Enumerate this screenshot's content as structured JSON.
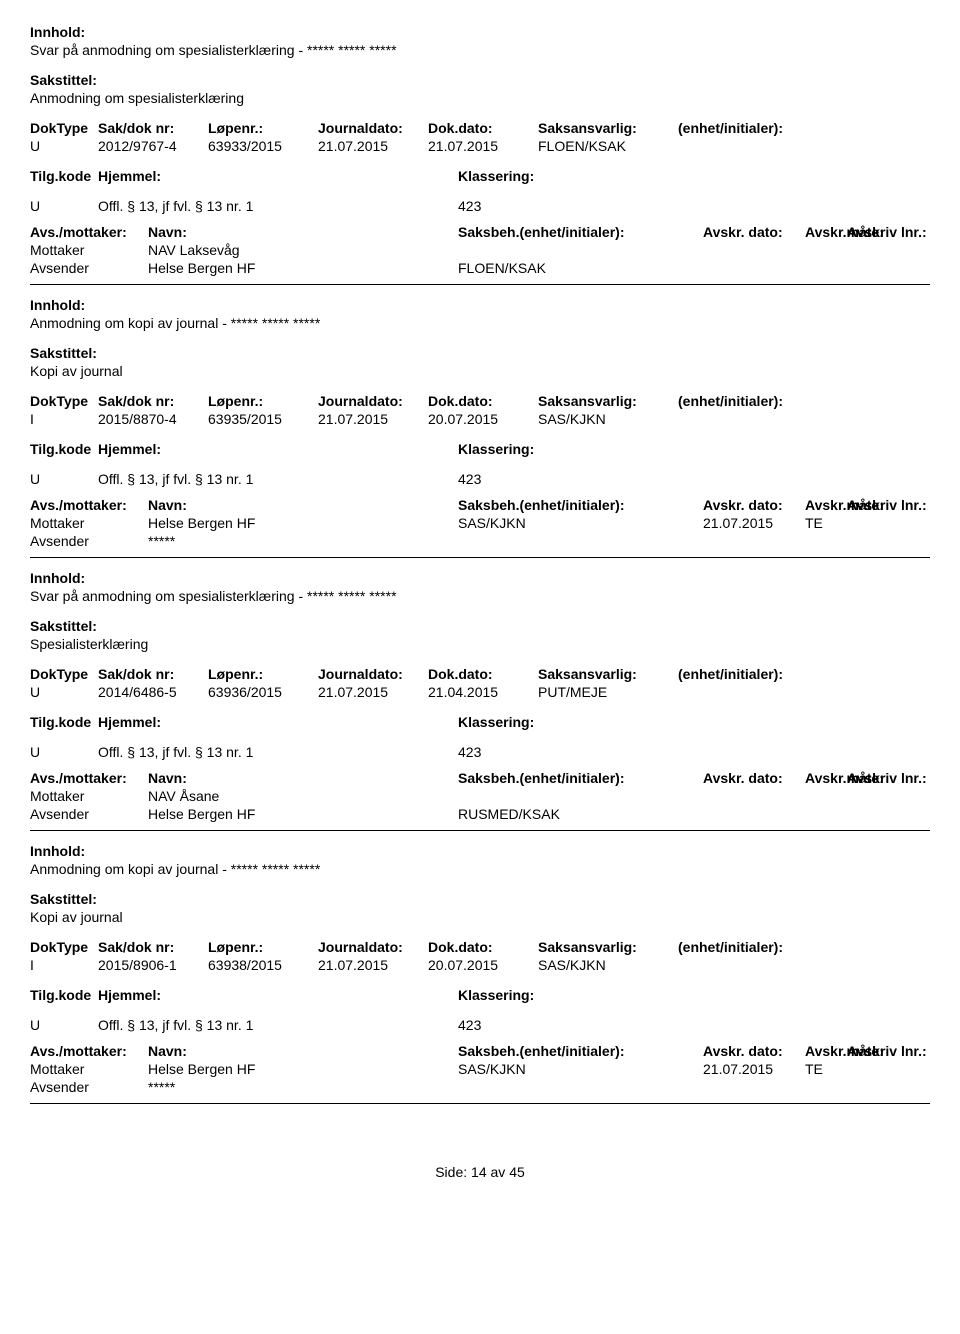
{
  "labels": {
    "innhold": "Innhold:",
    "sakstittel": "Sakstittel:",
    "doktype": "DokType",
    "sakdok": "Sak/dok nr:",
    "lopen": "Løpenr.:",
    "journal": "Journaldato:",
    "dokdato": "Dok.dato:",
    "saksans": "Saksansvarlig:",
    "enhet": "(enhet/initialer):",
    "tilgkode": "Tilg.kode",
    "hjemmel": "Hjemmel:",
    "klassering": "Klassering:",
    "avsmottaker": "Avs./mottaker:",
    "navn": "Navn:",
    "saksbeh": "Saksbeh.(enhet/initialer):",
    "avskrdato": "Avskr. dato:",
    "avskrmate": "Avskr.måte:",
    "avskrlnr": "Avskriv lnr.:",
    "mottaker": "Mottaker",
    "avsender": "Avsender"
  },
  "records": [
    {
      "innhold": "Svar på anmodning om spesialisterklæring - ***** ***** *****",
      "sakstittel": "Anmodning om spesialisterklæring",
      "doktype": "U",
      "sakdok": "2012/9767-4",
      "lopen": "63933/2015",
      "journal": "21.07.2015",
      "dokdato": "21.07.2015",
      "saksans": "FLOEN/KSAK",
      "tilgkode": "U",
      "hjemmel": "Offl. § 13, jf fvl. § 13 nr. 1",
      "klassering": "423",
      "parties": [
        {
          "role": "Mottaker",
          "navn": "NAV Laksevåg",
          "saksbeh": "",
          "avskrdato": "",
          "avskrmate": ""
        },
        {
          "role": "Avsender",
          "navn": "Helse Bergen HF",
          "saksbeh": "FLOEN/KSAK",
          "avskrdato": "",
          "avskrmate": ""
        }
      ]
    },
    {
      "innhold": "Anmodning om kopi av journal - ***** ***** *****",
      "sakstittel": "Kopi av journal",
      "doktype": "I",
      "sakdok": "2015/8870-4",
      "lopen": "63935/2015",
      "journal": "21.07.2015",
      "dokdato": "20.07.2015",
      "saksans": "SAS/KJKN",
      "tilgkode": "U",
      "hjemmel": "Offl. § 13, jf fvl. § 13 nr. 1",
      "klassering": "423",
      "parties": [
        {
          "role": "Mottaker",
          "navn": "Helse Bergen HF",
          "saksbeh": "SAS/KJKN",
          "avskrdato": "21.07.2015",
          "avskrmate": "TE"
        },
        {
          "role": "Avsender",
          "navn": "*****",
          "saksbeh": "",
          "avskrdato": "",
          "avskrmate": ""
        }
      ]
    },
    {
      "innhold": "Svar på anmodning om spesialisterklæring - ***** ***** *****",
      "sakstittel": "Spesialisterklæring",
      "doktype": "U",
      "sakdok": "2014/6486-5",
      "lopen": "63936/2015",
      "journal": "21.07.2015",
      "dokdato": "21.04.2015",
      "saksans": "PUT/MEJE",
      "tilgkode": "U",
      "hjemmel": "Offl. § 13, jf fvl. § 13 nr. 1",
      "klassering": "423",
      "parties": [
        {
          "role": "Mottaker",
          "navn": "NAV Åsane",
          "saksbeh": "",
          "avskrdato": "",
          "avskrmate": ""
        },
        {
          "role": "Avsender",
          "navn": "Helse Bergen HF",
          "saksbeh": "RUSMED/KSAK",
          "avskrdato": "",
          "avskrmate": ""
        }
      ]
    },
    {
      "innhold": "Anmodning om kopi av journal - ***** ***** *****",
      "sakstittel": "Kopi av journal",
      "doktype": "I",
      "sakdok": "2015/8906-1",
      "lopen": "63938/2015",
      "journal": "21.07.2015",
      "dokdato": "20.07.2015",
      "saksans": "SAS/KJKN",
      "tilgkode": "U",
      "hjemmel": "Offl. § 13, jf fvl. § 13 nr. 1",
      "klassering": "423",
      "parties": [
        {
          "role": "Mottaker",
          "navn": "Helse Bergen HF",
          "saksbeh": "SAS/KJKN",
          "avskrdato": "21.07.2015",
          "avskrmate": "TE"
        },
        {
          "role": "Avsender",
          "navn": "*****",
          "saksbeh": "",
          "avskrdato": "",
          "avskrmate": ""
        }
      ]
    }
  ],
  "footer": {
    "side_label": "Side:",
    "page": "14",
    "av": "av",
    "total": "45"
  }
}
